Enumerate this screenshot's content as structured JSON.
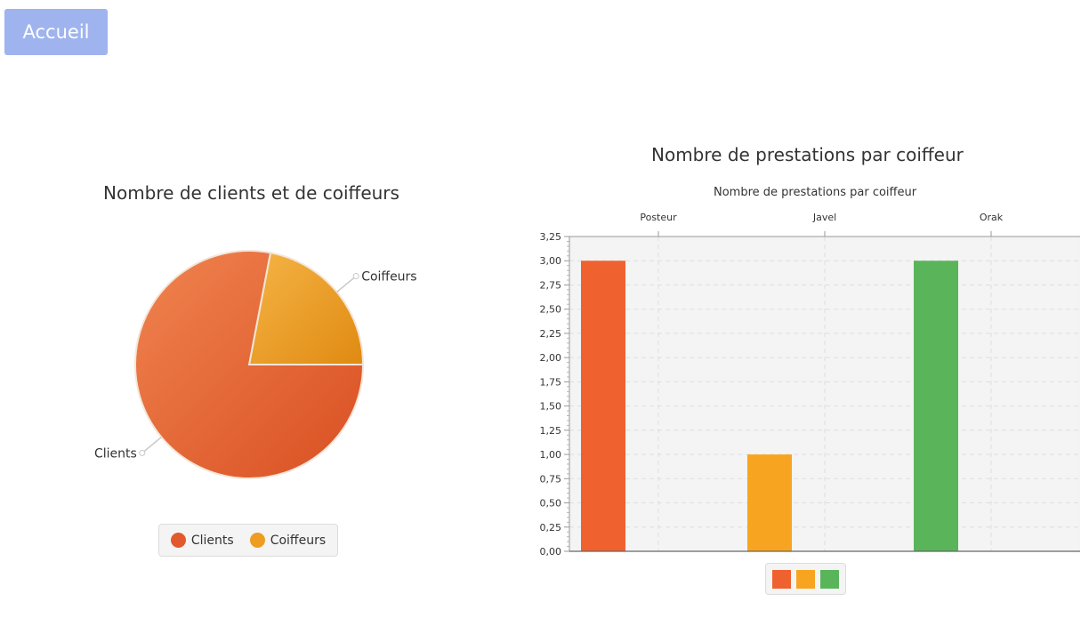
{
  "header": {
    "home_label": "Accueil"
  },
  "colors": {
    "button_bg": "#9fb4ee",
    "orange_red": "#f06130",
    "amber": "#f7a520",
    "green": "#5ab55a"
  },
  "chart_data": [
    {
      "type": "pie",
      "title": "Nombre de clients et de coiffeurs",
      "labels": [
        "Clients",
        "Coiffeurs"
      ],
      "values": [
        78,
        22
      ],
      "colors": [
        "#e2592e",
        "#ee9c22"
      ],
      "legend": "bottom"
    },
    {
      "type": "bar",
      "title": "Nombre de prestations par coiffeur",
      "subtitle": "Nombre de prestations par coiffeur",
      "categories": [
        "Posteur",
        "Javel",
        "Orak"
      ],
      "values": [
        3,
        1,
        3
      ],
      "colors": [
        "#f06130",
        "#f7a520",
        "#5ab55a"
      ],
      "ylim": [
        0,
        3.25
      ],
      "yticks": [
        "0,00",
        "0,25",
        "0,50",
        "0,75",
        "1,00",
        "1,25",
        "1,50",
        "1,75",
        "2,00",
        "2,25",
        "2,50",
        "2,75",
        "3,00",
        "3,25"
      ],
      "grid": true,
      "legend": "bottom"
    }
  ]
}
